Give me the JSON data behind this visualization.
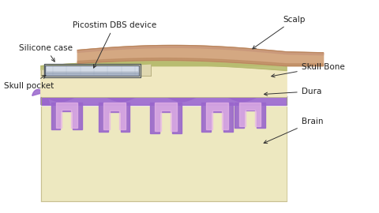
{
  "bg_color": "#ffffff",
  "labels": {
    "picostim": "Picostim DBS device",
    "scalp": "Scalp",
    "silicone": "Silicone case",
    "skull_bone": "Skull Bone",
    "skull_pocket": "Skull pocket",
    "dura": "Dura",
    "brain": "Brain"
  },
  "colors": {
    "scalp_top": "#c8967a",
    "scalp_bottom": "#b8845a",
    "scalp_inner": "#d4a882",
    "skull": "#f0e8c0",
    "skull_dark": "#ddd8a8",
    "skull_side": "#e8deb0",
    "skull_outline": "#b8b080",
    "olive_top": "#a0a060",
    "olive_body": "#b8bc70",
    "olive_outline": "#888848",
    "gray_layer": "#909898",
    "dura_purple": "#9966cc",
    "dura_med": "#aa77dd",
    "dura_light": "#ddaaee",
    "dura_pink": "#e8b8e8",
    "brain_main": "#ede8c0",
    "brain_light": "#f5f0d0",
    "brain_outline": "#c8c090",
    "device_silver": "#c0c8d4",
    "device_light": "#d8e0ec",
    "device_dark": "#8898b0",
    "device_side": "#909aaa",
    "device_outline": "#606878",
    "pocket_wall": "#d8d0a0",
    "pocket_floor": "#e0d8b0"
  }
}
